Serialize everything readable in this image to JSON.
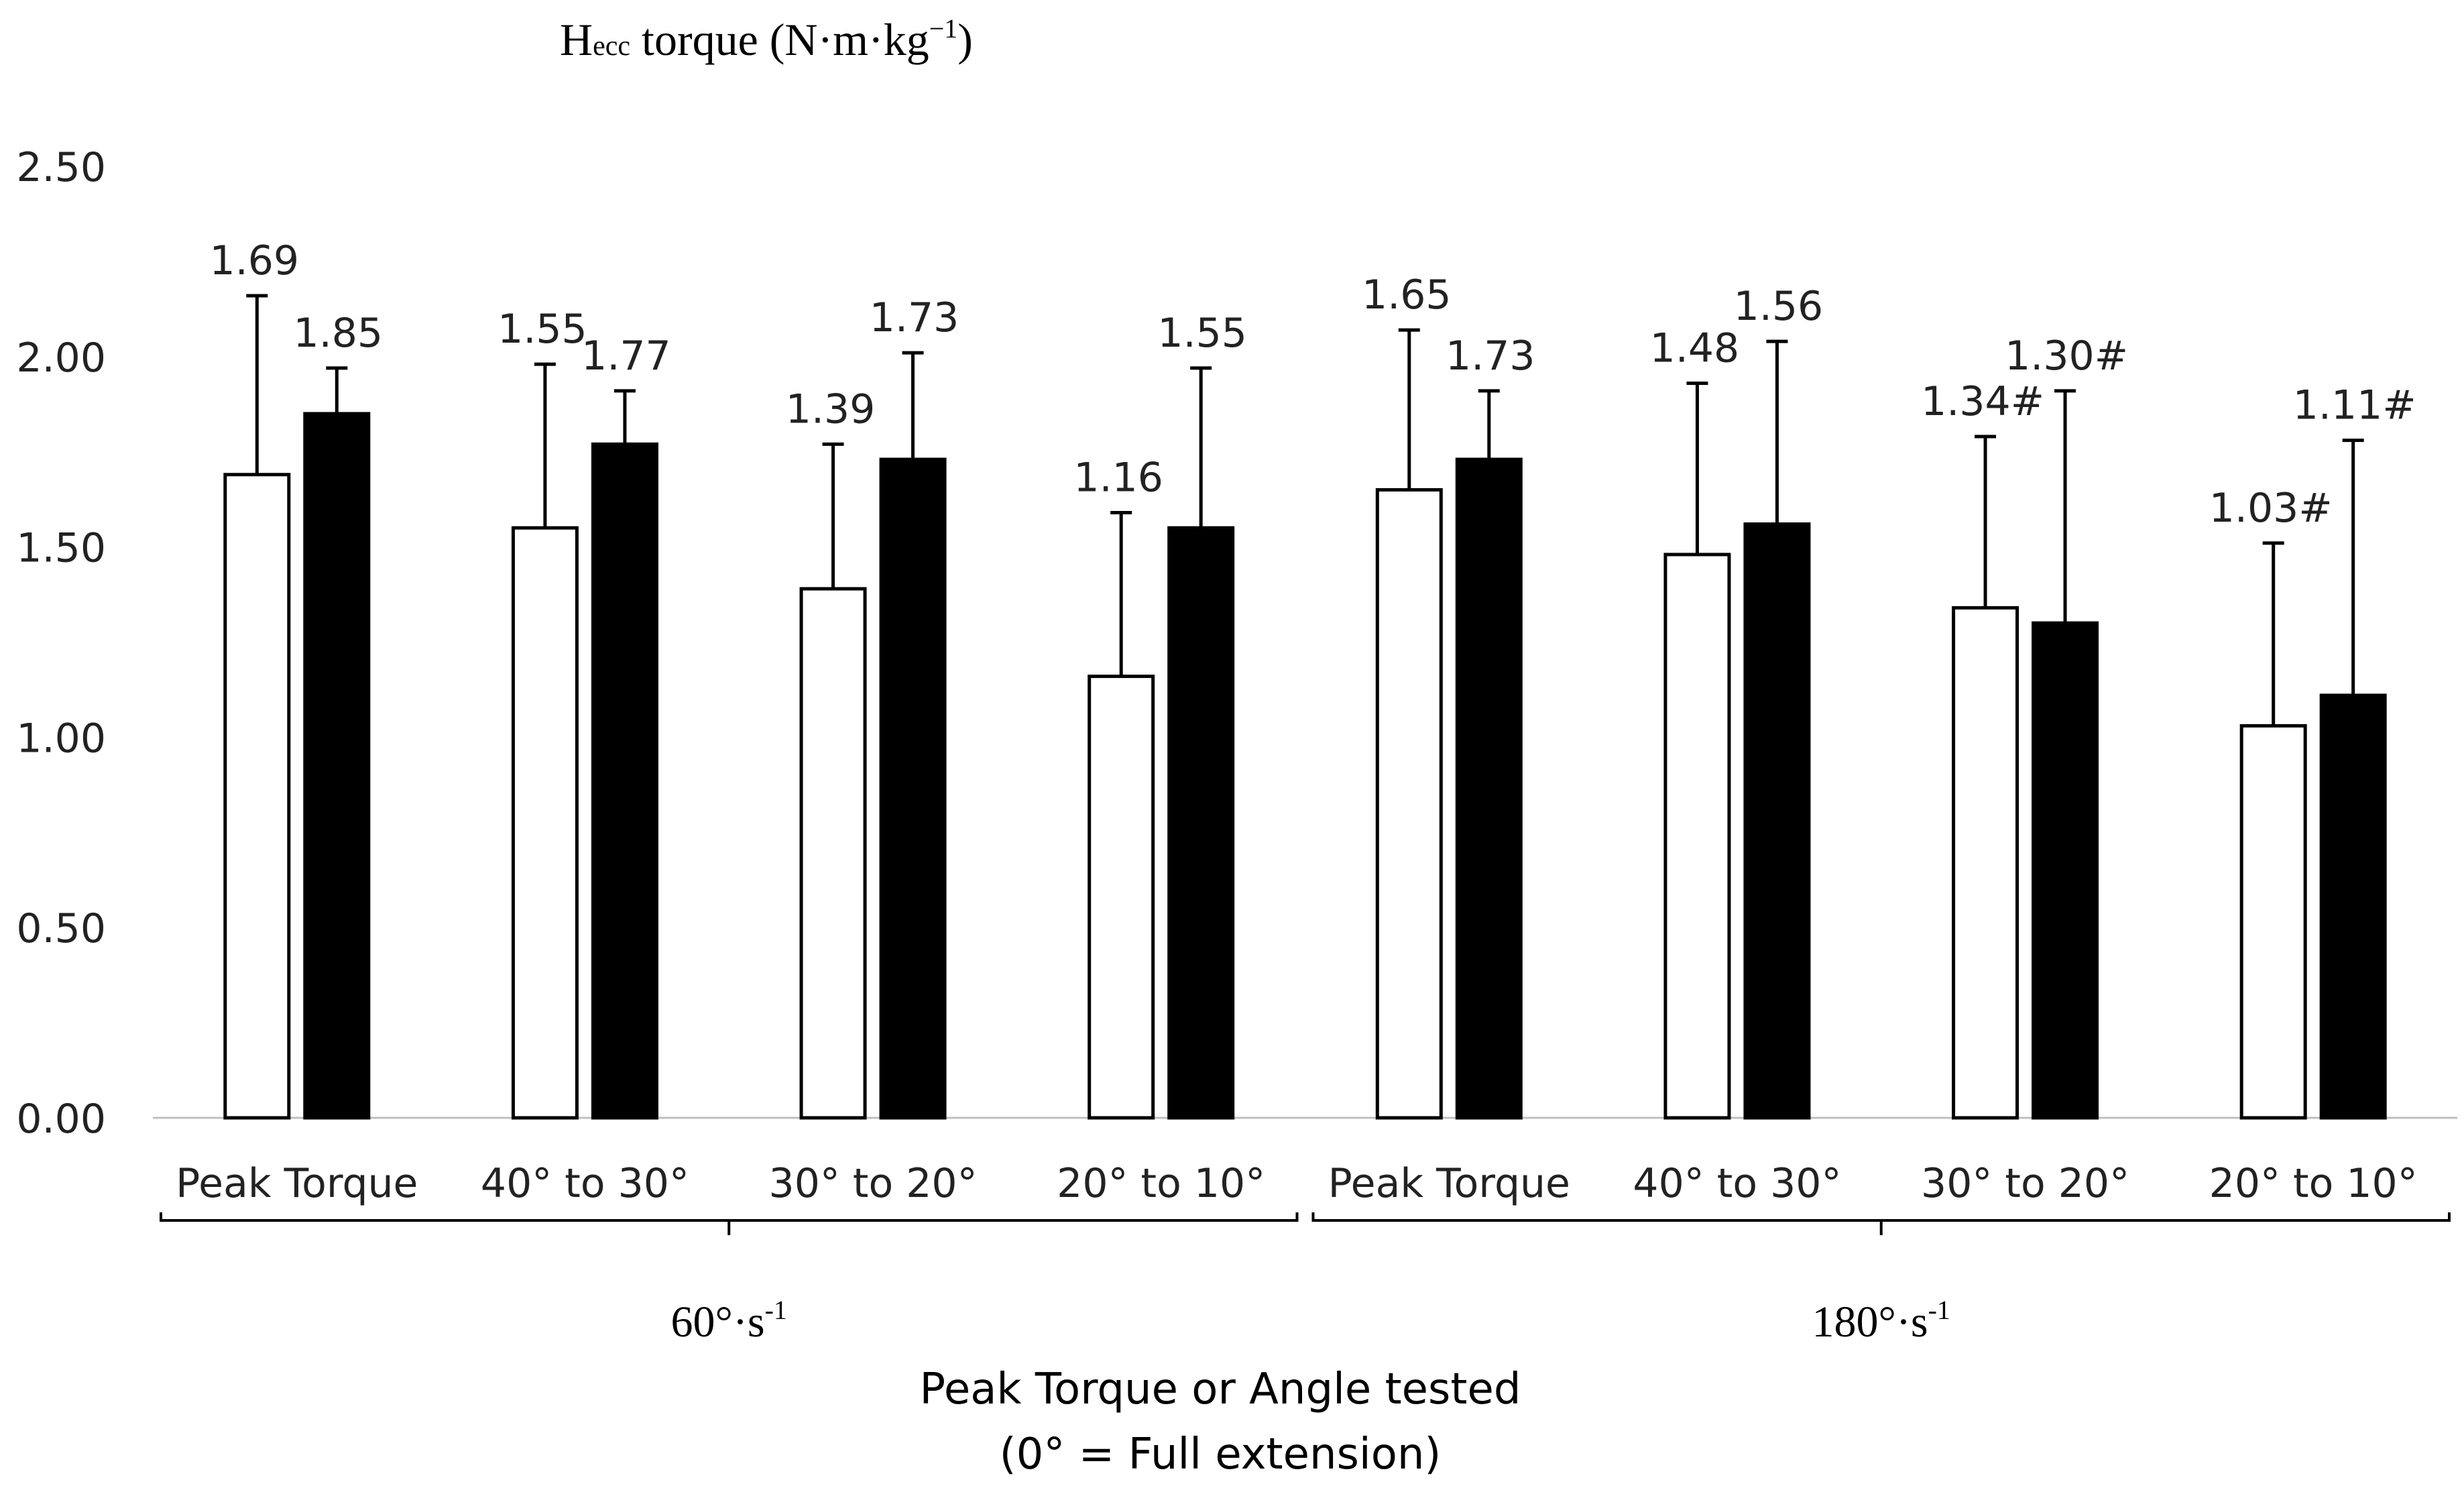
{
  "chart_data": {
    "type": "bar",
    "title": "Hecc torque (N·m·kg−1)",
    "title_parts": {
      "main": "H",
      "sub": "ecc",
      "rest": " torque (N·m·kg",
      "sup": "−1",
      "close": ")"
    },
    "ylim": [
      0,
      2.5
    ],
    "yticks": [
      "0.00",
      "0.50",
      "1.00",
      "1.50",
      "2.00",
      "2.50"
    ],
    "ytick_values": [
      0,
      0.5,
      1.0,
      1.5,
      2.0,
      2.5
    ],
    "groups": [
      {
        "label": "60°·s",
        "sup": "-1",
        "categories": [
          "Peak Torque",
          "40° to 30°",
          "30° to 20°",
          "20° to 10°"
        ]
      },
      {
        "label": "180°·s",
        "sup": "-1",
        "categories": [
          "Peak Torque",
          "40° to 30°",
          "30° to 20°",
          "20° to 10°"
        ]
      }
    ],
    "series": [
      {
        "name": "open bars",
        "fill": "#ffffff",
        "values": [
          1.69,
          1.55,
          1.39,
          1.16,
          1.65,
          1.48,
          1.34,
          1.03
        ],
        "error_top": [
          2.16,
          1.98,
          1.77,
          1.59,
          2.07,
          1.93,
          1.79,
          1.51
        ],
        "labels": [
          "1.69",
          "1.55",
          "1.39",
          "1.16",
          "1.65",
          "1.48",
          "1.34#",
          "1.03#"
        ]
      },
      {
        "name": "filled bars",
        "fill": "#000000",
        "values": [
          1.85,
          1.77,
          1.73,
          1.55,
          1.73,
          1.56,
          1.3,
          1.11
        ],
        "error_top": [
          1.97,
          1.91,
          2.01,
          1.97,
          1.91,
          2.04,
          1.91,
          1.78
        ],
        "labels": [
          "1.85",
          "1.77",
          "1.73",
          "1.55",
          "1.73",
          "1.56",
          "1.30#",
          "1.11#"
        ]
      }
    ],
    "xlabel_line1": "Peak Torque or Angle tested",
    "xlabel_line2": "(0° = Full extension)"
  }
}
